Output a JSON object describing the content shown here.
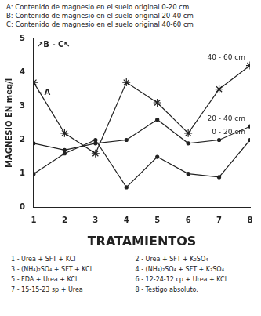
{
  "header": [
    "A: Contenido de magnesio en el suelo original 0-20 cm",
    "B: Contenido de magnesio en el suelo original 20-40 cm",
    "C: Contenido de magnesio en el suelo original 40-60 cm"
  ],
  "chart_data": {
    "type": "line",
    "y_label": "MAGNESIO EN meq/l",
    "x_label": "TRATAMIENTOS",
    "x": [
      1,
      2,
      3,
      4,
      5,
      6,
      7,
      8
    ],
    "xlim": [
      1,
      8
    ],
    "xticks": [
      1,
      2,
      3,
      4,
      5,
      6,
      7,
      8
    ],
    "ylim": [
      0,
      5
    ],
    "yticks": [
      0,
      1,
      2,
      3,
      4,
      5
    ],
    "grid": false,
    "series": [
      {
        "name": "40 - 60 cm",
        "color": "#222222",
        "marker": "star",
        "line_style": "solid",
        "values": [
          3.7,
          2.2,
          1.6,
          3.7,
          3.1,
          2.2,
          3.5,
          4.2
        ]
      },
      {
        "name": "20 - 40 cm",
        "color": "#222222",
        "marker": "circle",
        "line_style": "solid",
        "values": [
          1.9,
          1.7,
          1.9,
          2.0,
          2.6,
          1.9,
          2.0,
          2.4
        ]
      },
      {
        "name": "0 - 20 cm",
        "color": "#222222",
        "marker": "circle",
        "line_style": "solid",
        "values": [
          1.0,
          1.6,
          2.0,
          0.6,
          1.5,
          1.0,
          0.9,
          2.0
        ]
      }
    ],
    "annotations": [
      {
        "text": "↗B - C↖",
        "x": 1.1,
        "y": 4.8
      },
      {
        "text": "- A",
        "x": 1.15,
        "y": 3.4
      }
    ]
  },
  "treatments": [
    "1 - Urea + SFT + KCl",
    "2 - Urea + SFT + K₂SO₄",
    "3 - (NH₄)₂SO₄ + SFT + KCl",
    "4 - (NH₄)₂SO₄ + SFT + K₂SO₄",
    "5 - FDA + Urea + KCl",
    "6 - 12-24-12 cp + Urea + KCl",
    "7 - 15-15-23 sp + Urea",
    "8 - Testigo absoluto."
  ]
}
